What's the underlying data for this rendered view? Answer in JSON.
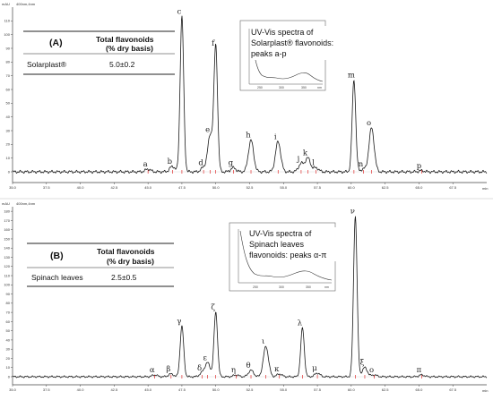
{
  "chart_data": [
    {
      "type": "line",
      "panel": "A",
      "ylabel": "mAU",
      "xlabel": "min",
      "series_tag": "400nm,4nm",
      "xlim": [
        35.0,
        70.0
      ],
      "ylim": [
        -10,
        120
      ],
      "x_ticks": [
        "35.0",
        "37.5",
        "40.0",
        "42.5",
        "45.0",
        "47.5",
        "50.0",
        "52.5",
        "55.0",
        "57.5",
        "60.0",
        "62.5",
        "65.0",
        "67.5"
      ],
      "y_ticks": [
        "0",
        "10",
        "20",
        "30",
        "40",
        "50",
        "60",
        "70",
        "80",
        "90",
        "100",
        "110"
      ],
      "peaks": [
        {
          "label": "a",
          "x": 45.0,
          "y": 2
        },
        {
          "label": "b",
          "x": 46.8,
          "y": 4
        },
        {
          "label": "c",
          "x": 47.5,
          "y": 113
        },
        {
          "label": "d",
          "x": 49.1,
          "y": 3
        },
        {
          "label": "e",
          "x": 49.6,
          "y": 27
        },
        {
          "label": "f",
          "x": 50.0,
          "y": 90
        },
        {
          "label": "g",
          "x": 51.3,
          "y": 3
        },
        {
          "label": "h",
          "x": 52.6,
          "y": 23
        },
        {
          "label": "i",
          "x": 54.6,
          "y": 22
        },
        {
          "label": "j",
          "x": 56.3,
          "y": 6
        },
        {
          "label": "k",
          "x": 56.8,
          "y": 10
        },
        {
          "label": "l",
          "x": 57.4,
          "y": 3
        },
        {
          "label": "m",
          "x": 60.2,
          "y": 67
        },
        {
          "label": "n",
          "x": 60.9,
          "y": 2
        },
        {
          "label": "o",
          "x": 61.5,
          "y": 32
        },
        {
          "label": "p",
          "x": 65.2,
          "y": 0.8
        }
      ],
      "table": {
        "letter": "(A)",
        "head1": "Total flavonoids",
        "head2": "(% dry basis)",
        "row_name": "Solarplast®",
        "row_value": "5.0±0.2"
      },
      "inset": {
        "line1": "UV-Vis spectra of",
        "line2": "Solarplast® flavonoids:",
        "line3": "peaks a-p",
        "x_ticks": [
          "250",
          "300",
          "350"
        ],
        "unit": "nm"
      }
    },
    {
      "type": "line",
      "panel": "B",
      "ylabel": "mAU",
      "xlabel": "min",
      "series_tag": "400nm,4nm",
      "xlim": [
        35.0,
        70.0
      ],
      "ylim": [
        -10,
        185
      ],
      "x_ticks": [
        "35.0",
        "37.5",
        "40.0",
        "42.5",
        "45.0",
        "47.5",
        "50.0",
        "52.5",
        "55.0",
        "57.5",
        "60.0",
        "62.5",
        "65.0",
        "67.5"
      ],
      "y_ticks": [
        "0",
        "10",
        "20",
        "30",
        "40",
        "50",
        "60",
        "70",
        "80",
        "90",
        "100",
        "110",
        "120",
        "130",
        "140",
        "150",
        "160",
        "170",
        "180"
      ],
      "peaks": [
        {
          "label": "α",
          "x": 45.5,
          "y": 2
        },
        {
          "label": "β",
          "x": 46.7,
          "y": 3
        },
        {
          "label": "γ",
          "x": 47.5,
          "y": 55
        },
        {
          "label": "δ",
          "x": 49.0,
          "y": 4
        },
        {
          "label": "ε",
          "x": 49.4,
          "y": 15
        },
        {
          "label": "ζ",
          "x": 50.0,
          "y": 70
        },
        {
          "label": "η",
          "x": 51.5,
          "y": 2
        },
        {
          "label": "θ",
          "x": 52.6,
          "y": 7
        },
        {
          "label": "ι",
          "x": 53.7,
          "y": 33
        },
        {
          "label": "κ",
          "x": 54.7,
          "y": 3
        },
        {
          "label": "λ",
          "x": 56.4,
          "y": 53
        },
        {
          "label": "μ",
          "x": 57.5,
          "y": 4
        },
        {
          "label": "ν",
          "x": 60.3,
          "y": 175
        },
        {
          "label": "ξ",
          "x": 61.0,
          "y": 10
        },
        {
          "label": "ο",
          "x": 61.7,
          "y": 2
        },
        {
          "label": "π",
          "x": 65.2,
          "y": 2
        }
      ],
      "table": {
        "letter": "(B)",
        "head1": "Total flavonoids",
        "head2": "(% dry basis)",
        "row_name": "Spinach leaves",
        "row_value": "2.5±0.5"
      },
      "inset": {
        "line1": "UV-Vis spectra of",
        "line2": "Spinach leaves",
        "line3": "flavonoids: peaks α-π",
        "x_ticks": [
          "250",
          "300",
          "350"
        ],
        "unit": "nm"
      }
    }
  ]
}
